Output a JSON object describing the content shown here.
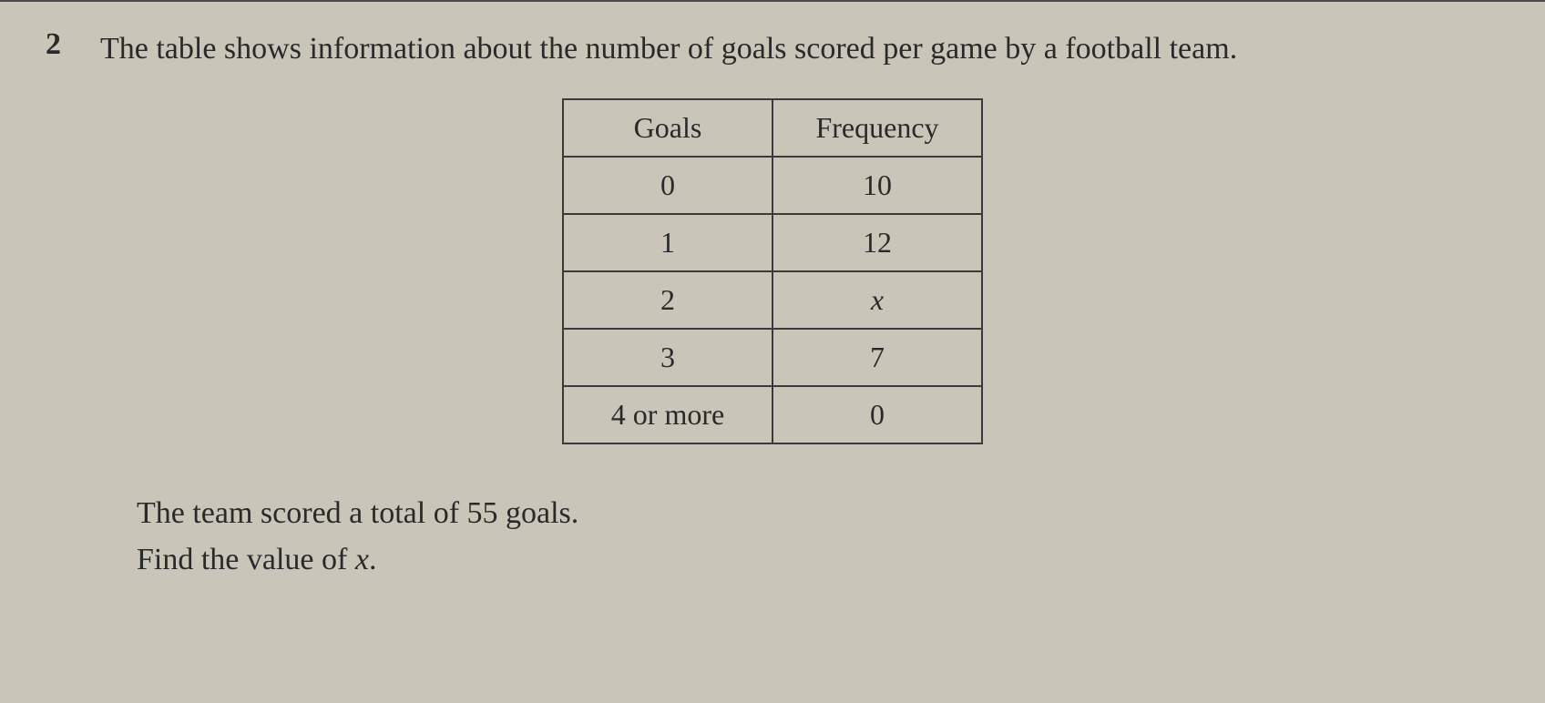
{
  "question": {
    "number": "2",
    "text": "The table shows information about the number of goals scored per game by a football team."
  },
  "table": {
    "headers": {
      "col1": "Goals",
      "col2": "Frequency"
    },
    "rows": [
      {
        "goals": "0",
        "frequency": "10"
      },
      {
        "goals": "1",
        "frequency": "12"
      },
      {
        "goals": "2",
        "frequency": "x"
      },
      {
        "goals": "3",
        "frequency": "7"
      },
      {
        "goals": "4 or more",
        "frequency": "0"
      }
    ]
  },
  "statement": {
    "line1": "The team scored a total of 55 goals.",
    "line2_prefix": "Find the value of ",
    "line2_var": "x",
    "line2_suffix": "."
  },
  "styling": {
    "background_color": "#c9c5b8",
    "text_color": "#2a2a2a",
    "border_color": "#3a3a3a",
    "font_family": "Times New Roman",
    "question_fontsize": 34,
    "table_fontsize": 32
  }
}
